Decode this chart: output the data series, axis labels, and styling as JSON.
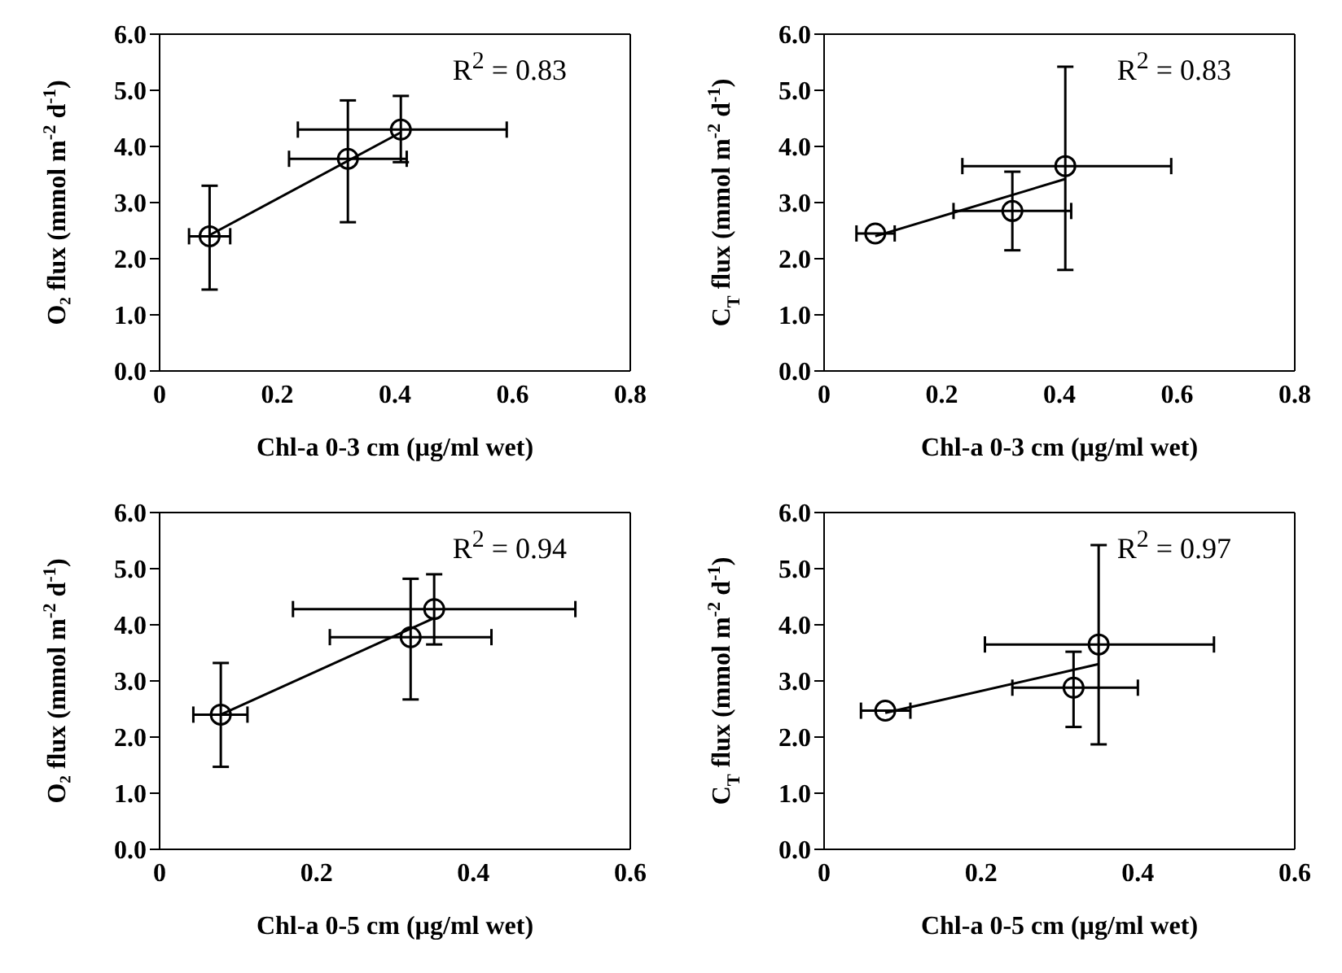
{
  "chart_data": [
    {
      "type": "scatter",
      "xlabel": "Chl-a 0-3 cm (µg/ml wet)",
      "ylabel": "O₂ flux (mmol m$^{-2}$ d$^{-1}$)",
      "annotations": [
        "R$^{2}$ = 0.83"
      ],
      "xlim": [
        0,
        0.8
      ],
      "xticks": [
        0,
        0.2,
        0.4,
        0.6,
        0.8
      ],
      "ylim": [
        0,
        6
      ],
      "yticks": [
        {
          "value": 0,
          "label": "0.0"
        },
        {
          "value": 1,
          "label": "1.0"
        },
        {
          "value": 2,
          "label": "2.0"
        },
        {
          "value": 3,
          "label": "3.0"
        },
        {
          "value": 4,
          "label": "4.0"
        },
        {
          "value": 5,
          "label": "5.0"
        },
        {
          "value": 6,
          "label": "6.0"
        }
      ],
      "series": [
        {
          "marker": "circle",
          "color": "#000000",
          "x": [
            0.085,
            0.32,
            0.41
          ],
          "values": [
            2.4,
            3.78,
            4.3
          ],
          "errors": [
            [
              1.45,
              3.3
            ],
            [
              2.65,
              4.82
            ],
            [
              3.72,
              4.9
            ]
          ],
          "xerrors": [
            [
              0.05,
              0.12
            ],
            [
              0.22,
              0.42
            ],
            [
              0.235,
              0.59
            ]
          ]
        },
        {
          "type": "line",
          "color": "#000000",
          "x": [
            0.085,
            0.41
          ],
          "values": [
            2.42,
            4.25
          ]
        }
      ]
    },
    {
      "type": "scatter",
      "xlabel": "Chl-a 0-3 cm (µg/ml wet)",
      "ylabel": "C$_{T}$ flux (mmol m$^{-2}$ d$^{-1}$)",
      "annotations": [
        "R$^{2}$ = 0.83"
      ],
      "xlim": [
        0,
        0.8
      ],
      "xticks": [
        0,
        0.2,
        0.4,
        0.6,
        0.8
      ],
      "ylim": [
        0,
        6
      ],
      "yticks": [
        {
          "value": 0,
          "label": "0.0"
        },
        {
          "value": 1,
          "label": "1.0"
        },
        {
          "value": 2,
          "label": "2.0"
        },
        {
          "value": 3,
          "label": "3.0"
        },
        {
          "value": 4,
          "label": "4.0"
        },
        {
          "value": 5,
          "label": "5.0"
        },
        {
          "value": 6,
          "label": "6.0"
        }
      ],
      "series": [
        {
          "marker": "circle",
          "color": "#000000",
          "x": [
            0.087,
            0.32,
            0.41
          ],
          "values": [
            2.45,
            2.85,
            3.65
          ],
          "errors": [
            null,
            [
              2.15,
              3.55
            ],
            [
              1.8,
              5.42
            ]
          ],
          "xerrors": [
            [
              0.055,
              0.12
            ],
            [
              0.22,
              0.42
            ],
            [
              0.235,
              0.59
            ]
          ]
        },
        {
          "type": "line",
          "color": "#000000",
          "x": [
            0.087,
            0.41
          ],
          "values": [
            2.4,
            3.42
          ]
        }
      ]
    },
    {
      "type": "scatter",
      "xlabel": "Chl-a 0-5 cm (µg/ml wet)",
      "ylabel": "O₂ flux (mmol m$^{-2}$ d$^{-1}$)",
      "annotations": [
        "R$^{2}$ = 0.94"
      ],
      "xlim": [
        0,
        0.6
      ],
      "xticks": [
        0,
        0.2,
        0.4,
        0.6
      ],
      "ylim": [
        0,
        6
      ],
      "yticks": [
        {
          "value": 0,
          "label": "0.0"
        },
        {
          "value": 1,
          "label": "1.0"
        },
        {
          "value": 2,
          "label": "2.0"
        },
        {
          "value": 3,
          "label": "3.0"
        },
        {
          "value": 4,
          "label": "4.0"
        },
        {
          "value": 5,
          "label": "5.0"
        },
        {
          "value": 6,
          "label": "6.0"
        }
      ],
      "series": [
        {
          "marker": "circle",
          "color": "#000000",
          "x": [
            0.078,
            0.32,
            0.35
          ],
          "values": [
            2.4,
            3.78,
            4.28
          ],
          "errors": [
            [
              1.47,
              3.32
            ],
            [
              2.67,
              4.82
            ],
            [
              3.65,
              4.9
            ]
          ],
          "xerrors": [
            [
              0.043,
              0.112
            ],
            [
              0.217,
              0.423
            ],
            [
              0.17,
              0.53
            ]
          ]
        },
        {
          "type": "line",
          "color": "#000000",
          "x": [
            0.078,
            0.35
          ],
          "values": [
            2.4,
            4.12
          ]
        }
      ]
    },
    {
      "type": "scatter",
      "xlabel": "Chl-a 0-5 cm (µg/ml wet)",
      "ylabel": "C$_{T}$ flux (mmol m$^{-2}$ d$^{-1}$)",
      "annotations": [
        "R$^{2}$ = 0.97"
      ],
      "xlim": [
        0,
        0.6
      ],
      "xticks": [
        0,
        0.2,
        0.4,
        0.6
      ],
      "ylim": [
        0,
        6
      ],
      "yticks": [
        {
          "value": 0,
          "label": "0.0"
        },
        {
          "value": 1,
          "label": "1.0"
        },
        {
          "value": 2,
          "label": "2.0"
        },
        {
          "value": 3,
          "label": "3.0"
        },
        {
          "value": 4,
          "label": "4.0"
        },
        {
          "value": 5,
          "label": "5.0"
        },
        {
          "value": 6,
          "label": "6.0"
        }
      ],
      "series": [
        {
          "marker": "circle",
          "color": "#000000",
          "x": [
            0.078,
            0.318,
            0.35
          ],
          "values": [
            2.47,
            2.88,
            3.65
          ],
          "errors": [
            null,
            [
              2.18,
              3.52
            ],
            [
              1.87,
              5.42
            ]
          ],
          "xerrors": [
            [
              0.047,
              0.11
            ],
            [
              0.24,
              0.4
            ],
            [
              0.205,
              0.497
            ]
          ]
        },
        {
          "type": "line",
          "color": "#000000",
          "x": [
            0.078,
            0.35
          ],
          "values": [
            2.43,
            3.3
          ]
        }
      ]
    }
  ]
}
